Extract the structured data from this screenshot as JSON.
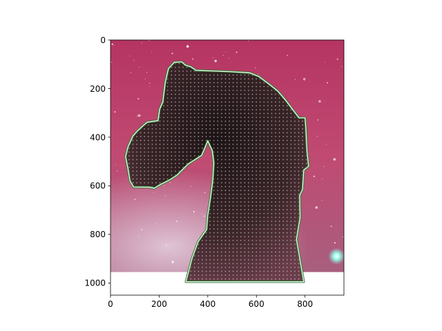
{
  "chart_data": {
    "type": "image",
    "title": "",
    "xlabel": "",
    "ylabel": "",
    "xlim": [
      0,
      960
    ],
    "ylim": [
      1050,
      0
    ],
    "y_inverted": true,
    "image_extent_y": [
      0,
      955
    ],
    "xticks": [
      0,
      200,
      400,
      600,
      800
    ],
    "yticks": [
      0,
      200,
      400,
      600,
      800,
      1000
    ],
    "xtick_labels": [
      "0",
      "200",
      "400",
      "600",
      "800"
    ],
    "ytick_labels": [
      "0",
      "200",
      "400",
      "600",
      "800",
      "1000"
    ],
    "grid": false,
    "image_description": "pink-red nebula with a dark horsehead-shaped dust cloud",
    "polygon_overlay": {
      "outer_color": "#2e7d32",
      "inner_color": "#ffffff",
      "dot_grid_spacing": 16,
      "dot_color": "#bbbbbb",
      "vertices": [
        [
          310,
          995
        ],
        [
          795,
          995
        ],
        [
          765,
          820
        ],
        [
          780,
          730
        ],
        [
          778,
          640
        ],
        [
          790,
          615
        ],
        [
          795,
          535
        ],
        [
          815,
          520
        ],
        [
          808,
          455
        ],
        [
          803,
          355
        ],
        [
          800,
          320
        ],
        [
          775,
          320
        ],
        [
          718,
          245
        ],
        [
          688,
          210
        ],
        [
          650,
          180
        ],
        [
          610,
          150
        ],
        [
          572,
          135
        ],
        [
          490,
          130
        ],
        [
          352,
          125
        ],
        [
          330,
          110
        ],
        [
          308,
          103
        ],
        [
          293,
          90
        ],
        [
          262,
          92
        ],
        [
          238,
          118
        ],
        [
          225,
          175
        ],
        [
          215,
          255
        ],
        [
          202,
          285
        ],
        [
          195,
          332
        ],
        [
          152,
          338
        ],
        [
          137,
          350
        ],
        [
          110,
          375
        ],
        [
          92,
          395
        ],
        [
          72,
          440
        ],
        [
          62,
          480
        ],
        [
          72,
          530
        ],
        [
          80,
          580
        ],
        [
          95,
          605
        ],
        [
          160,
          606
        ],
        [
          180,
          610
        ],
        [
          205,
          595
        ],
        [
          245,
          575
        ],
        [
          275,
          555
        ],
        [
          320,
          510
        ],
        [
          375,
          475
        ],
        [
          390,
          440
        ],
        [
          400,
          415
        ],
        [
          418,
          455
        ],
        [
          425,
          505
        ],
        [
          420,
          580
        ],
        [
          410,
          655
        ],
        [
          400,
          720
        ],
        [
          395,
          780
        ],
        [
          360,
          830
        ],
        [
          335,
          900
        ]
      ]
    },
    "colors": {
      "nebula_top": "#b53462",
      "nebula_mid": "#c04a72",
      "nebula_low": "#a85f7e",
      "cloud_dark": "#2a1a1c",
      "bright_star": "#7fffe0"
    }
  }
}
